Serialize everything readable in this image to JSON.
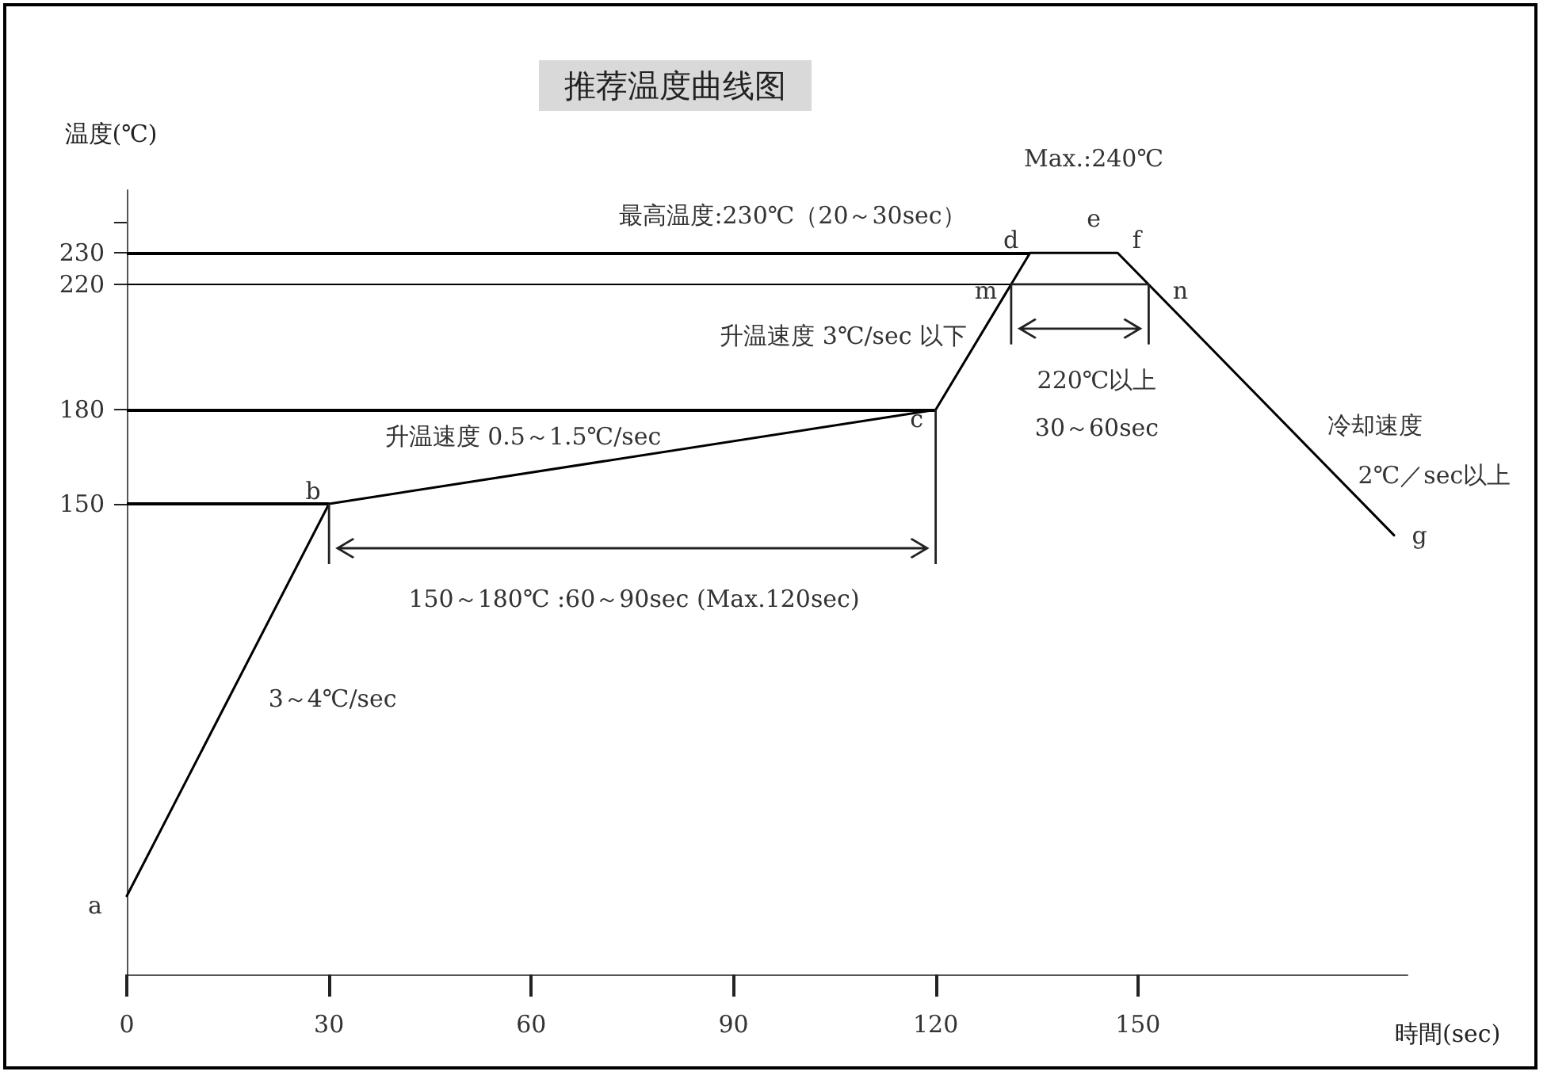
{
  "chart_data": {
    "type": "line",
    "title": "推荐温度曲线图",
    "xlabel": "時間(sec)",
    "ylabel": "温度(℃)",
    "x": [
      0,
      30,
      120,
      134,
      147,
      188
    ],
    "series": [
      {
        "color": "#000000",
        "values": [
          25,
          150,
          180,
          230,
          230,
          140
        ]
      }
    ],
    "xlim": [
      0,
      190
    ],
    "xticks": [
      0,
      30,
      60,
      90,
      120,
      150
    ],
    "ylim": [
      0,
      250
    ],
    "yticks": [
      150,
      180,
      220,
      230,
      {
        "value": 240,
        "label": null
      }
    ],
    "grid": false,
    "marker": "none",
    "line_style": "solid",
    "ref_lines": [
      {
        "axis": "y",
        "value": 230,
        "color": "#000000"
      },
      {
        "axis": "y",
        "value": 220,
        "color": "#000000"
      },
      {
        "axis": "y",
        "value": 180,
        "color": "#000000"
      },
      {
        "axis": "y",
        "value": 150,
        "color": "#000000"
      }
    ],
    "annotations": [
      "Max.:240℃",
      "最高温度:230℃（20～30sec）",
      "e",
      {
        "text": "d",
        "x": 134,
        "y": 230
      },
      {
        "text": "f",
        "x": 147,
        "y": 230
      },
      {
        "text": "m",
        "x": 131.2,
        "y": 220
      },
      {
        "text": "n",
        "x": 151.6,
        "y": 220
      },
      {
        "text": "c",
        "x": 120,
        "y": 180
      },
      {
        "text": "b",
        "x": 30,
        "y": 150
      },
      {
        "text": "a",
        "x": 0,
        "y": 25
      },
      {
        "text": "g",
        "x": 188,
        "y": 140
      },
      {
        "text": "升温速度 3℃/sec 以下",
        "x": 127,
        "y": 200
      },
      {
        "text": "升温速度 0.5～1.5℃/sec",
        "x": 75,
        "y": 165
      },
      {
        "text": "冷却速度",
        "x": 172,
        "y": 175
      },
      {
        "text": "2℃／sec以上",
        "x": 178,
        "y": 162
      },
      {
        "text": "3～4℃/sec",
        "x": 15,
        "y": 88
      },
      "150～180℃ :60～90sec (Max.120sec)",
      "220℃以上",
      "30～60sec"
    ]
  }
}
